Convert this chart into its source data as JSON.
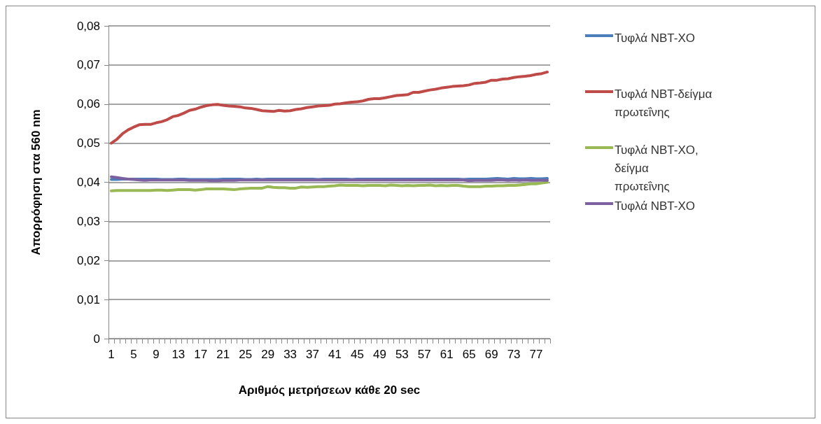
{
  "chart_data": {
    "type": "line",
    "xlabel": "Αριθμός μετρήσεων κάθε 20 sec",
    "ylabel": "Απορρόφηση στα 560 nm",
    "categories": [
      "1",
      null,
      null,
      null,
      "5",
      null,
      null,
      null,
      "9",
      null,
      null,
      null,
      "13",
      null,
      null,
      null,
      "17",
      null,
      null,
      null,
      "21",
      null,
      null,
      null,
      "25",
      null,
      null,
      null,
      "29",
      null,
      null,
      null,
      "33",
      null,
      null,
      null,
      "37",
      null,
      null,
      null,
      "41",
      null,
      null,
      null,
      "45",
      null,
      null,
      null,
      "49",
      null,
      null,
      null,
      "53",
      null,
      null,
      null,
      "57",
      null,
      null,
      null,
      "61",
      null,
      null,
      null,
      "65",
      null,
      null,
      null,
      "69",
      null,
      null,
      null,
      "73",
      null,
      null,
      null,
      "77",
      null,
      null
    ],
    "ylim": [
      0,
      0.08
    ],
    "yticks": [
      {
        "value": 0,
        "label": "0"
      },
      {
        "value": 0.01,
        "label": "0,01"
      },
      {
        "value": 0.02,
        "label": "0,02"
      },
      {
        "value": 0.03,
        "label": "0,03"
      },
      {
        "value": 0.04,
        "label": "0,04"
      },
      {
        "value": 0.05,
        "label": "0,05"
      },
      {
        "value": 0.06,
        "label": "0,06"
      },
      {
        "value": 0.07,
        "label": "0,07"
      },
      {
        "value": 0.08,
        "label": "0,08"
      }
    ],
    "grid": "y",
    "legend": "right",
    "marker": "none",
    "line_style": "solid",
    "series": [
      {
        "name": "Τυφλά NBT-XO",
        "color": "#4a7ebb",
        "values": [
          0.0407,
          0.0407,
          0.0408,
          0.0408,
          0.0408,
          0.0408,
          0.0408,
          0.0408,
          0.0408,
          0.0407,
          0.0407,
          0.0407,
          0.0408,
          0.0408,
          0.0407,
          0.0407,
          0.0407,
          0.0407,
          0.0407,
          0.0407,
          0.0408,
          0.0408,
          0.0408,
          0.0408,
          0.0407,
          0.0407,
          0.0408,
          0.0407,
          0.0408,
          0.0408,
          0.0408,
          0.0408,
          0.0408,
          0.0408,
          0.0408,
          0.0408,
          0.0408,
          0.0407,
          0.0408,
          0.0408,
          0.0408,
          0.0408,
          0.0408,
          0.0407,
          0.0408,
          0.0408,
          0.0408,
          0.0408,
          0.0408,
          0.0408,
          0.0408,
          0.0408,
          0.0408,
          0.0408,
          0.0408,
          0.0408,
          0.0408,
          0.0408,
          0.0408,
          0.0408,
          0.0408,
          0.0408,
          0.0408,
          0.0407,
          0.0408,
          0.0408,
          0.0408,
          0.0408,
          0.0409,
          0.041,
          0.0409,
          0.0408,
          0.041,
          0.0409,
          0.0409,
          0.041,
          0.0409,
          0.0409,
          0.041
        ]
      },
      {
        "name": "Τυφλά NBT-δείγμα πρωτεΐνης",
        "color": "#be4b48",
        "values": [
          0.05,
          0.051,
          0.0524,
          0.0534,
          0.0541,
          0.0547,
          0.0548,
          0.0548,
          0.0552,
          0.0555,
          0.056,
          0.0568,
          0.0571,
          0.0577,
          0.0584,
          0.0587,
          0.0592,
          0.0596,
          0.0598,
          0.0599,
          0.0597,
          0.0595,
          0.0594,
          0.0593,
          0.059,
          0.0589,
          0.0586,
          0.0583,
          0.0582,
          0.0581,
          0.0584,
          0.0582,
          0.0583,
          0.0586,
          0.0588,
          0.0591,
          0.0593,
          0.0595,
          0.0596,
          0.0597,
          0.06,
          0.0601,
          0.0603,
          0.0605,
          0.0606,
          0.0608,
          0.0612,
          0.0614,
          0.0614,
          0.0616,
          0.0619,
          0.0622,
          0.0623,
          0.0624,
          0.063,
          0.063,
          0.0633,
          0.0636,
          0.0638,
          0.0641,
          0.0643,
          0.0645,
          0.0646,
          0.0647,
          0.0649,
          0.0653,
          0.0654,
          0.0656,
          0.0661,
          0.0661,
          0.0664,
          0.0665,
          0.0668,
          0.067,
          0.0671,
          0.0673,
          0.0676,
          0.0678,
          0.0682
        ]
      },
      {
        "name": "Τυφλά NBT-XO, δείγμα πρωτεΐνης",
        "color": "#98b954",
        "values": [
          0.0378,
          0.0379,
          0.0379,
          0.0379,
          0.0379,
          0.0379,
          0.0379,
          0.0379,
          0.038,
          0.038,
          0.0379,
          0.038,
          0.0381,
          0.0381,
          0.0381,
          0.038,
          0.0381,
          0.0383,
          0.0383,
          0.0383,
          0.0383,
          0.0382,
          0.0381,
          0.0383,
          0.0384,
          0.0385,
          0.0385,
          0.0385,
          0.0389,
          0.0387,
          0.0386,
          0.0386,
          0.0385,
          0.0385,
          0.0388,
          0.0387,
          0.0388,
          0.0389,
          0.0389,
          0.039,
          0.0391,
          0.0393,
          0.0392,
          0.0392,
          0.0392,
          0.0391,
          0.0392,
          0.0392,
          0.0392,
          0.0391,
          0.0393,
          0.0392,
          0.0391,
          0.0392,
          0.0391,
          0.0392,
          0.0392,
          0.0393,
          0.0391,
          0.0392,
          0.0391,
          0.0392,
          0.0392,
          0.039,
          0.0389,
          0.0389,
          0.0389,
          0.039,
          0.039,
          0.0391,
          0.0391,
          0.0392,
          0.0392,
          0.0393,
          0.0394,
          0.0396,
          0.0396,
          0.0398,
          0.04
        ]
      },
      {
        "name": "Τυφλά NBT-XO",
        "color": "#7d60a0",
        "values": [
          0.0414,
          0.0412,
          0.041,
          0.0408,
          0.0407,
          0.0406,
          0.0405,
          0.0406,
          0.0406,
          0.0406,
          0.0406,
          0.0406,
          0.0406,
          0.0406,
          0.0405,
          0.0405,
          0.0405,
          0.0405,
          0.0404,
          0.0404,
          0.0405,
          0.0405,
          0.0405,
          0.0406,
          0.0406,
          0.0406,
          0.0406,
          0.0406,
          0.0406,
          0.0406,
          0.0406,
          0.0406,
          0.0406,
          0.0406,
          0.0406,
          0.0406,
          0.0406,
          0.0406,
          0.0406,
          0.0406,
          0.0406,
          0.0406,
          0.0406,
          0.0406,
          0.0406,
          0.0406,
          0.0406,
          0.0406,
          0.0406,
          0.0406,
          0.0406,
          0.0406,
          0.0406,
          0.0406,
          0.0406,
          0.0406,
          0.0406,
          0.0406,
          0.0406,
          0.0406,
          0.0406,
          0.0406,
          0.0406,
          0.0406,
          0.0404,
          0.0405,
          0.0405,
          0.0405,
          0.0405,
          0.0406,
          0.0406,
          0.0405,
          0.0406,
          0.0405,
          0.0406,
          0.0405,
          0.0405,
          0.0405,
          0.0405
        ]
      }
    ]
  }
}
